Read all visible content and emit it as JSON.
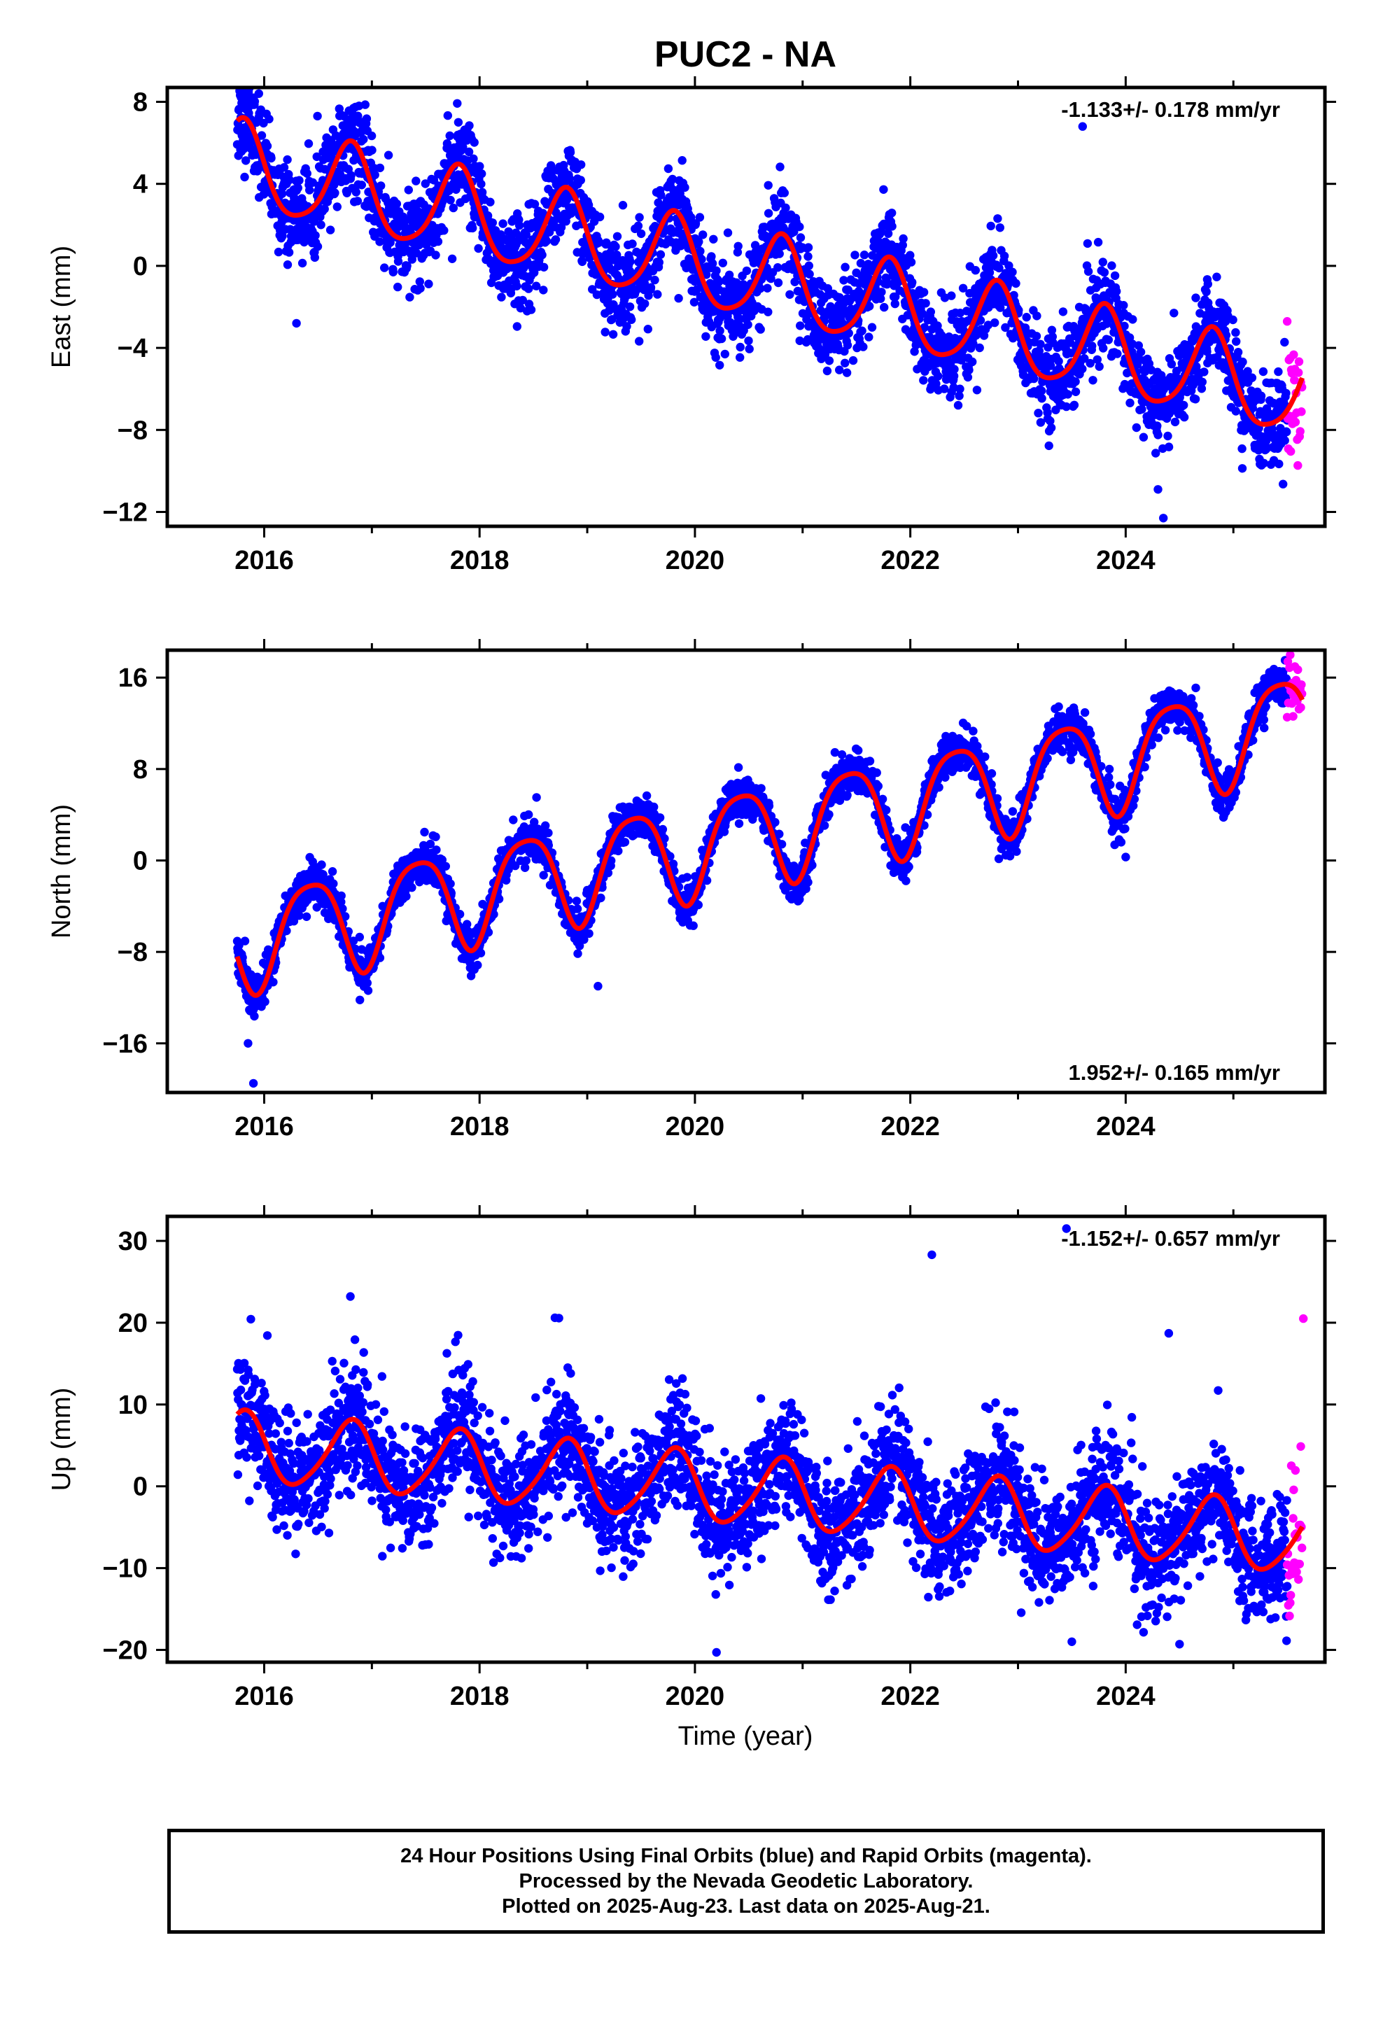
{
  "title": "PUC2 - NA",
  "xlabel": "Time (year)",
  "caption": [
    "24 Hour Positions Using Final Orbits (blue) and Rapid Orbits (magenta).",
    "Processed by the Nevada Geodetic Laboratory.",
    "Plotted on 2025-Aug-23. Last data on 2025-Aug-21."
  ],
  "colors": {
    "final": "#0000ff",
    "rapid": "#ff00ff",
    "model": "#ff0000",
    "axis": "#000000"
  },
  "chart_data": [
    {
      "type": "scatter",
      "ylabel": "East (mm)",
      "rate_label": "-1.133+/- 0.178 mm/yr",
      "rate_position": "top-right",
      "xlim": [
        2015.1,
        2025.85
      ],
      "ylim": [
        -12.7,
        8.7
      ],
      "xticks": [
        2016,
        2018,
        2020,
        2022,
        2024
      ],
      "xtick_labels": [
        "2016",
        "2018",
        "2020",
        "2022",
        "2024"
      ],
      "yticks": [
        -12,
        -8,
        -4,
        0,
        4,
        8
      ],
      "ytick_labels": [
        "−12",
        "−8",
        "−4",
        "0",
        "4",
        "8"
      ],
      "grid": false,
      "data_start": 2015.75,
      "final_end": 2025.5,
      "data_end": 2025.64,
      "series": [
        {
          "name": "Final Orbits (blue)",
          "kind": "points"
        },
        {
          "name": "Rapid Orbits (magenta)",
          "kind": "points"
        },
        {
          "kind": "fit-line"
        }
      ],
      "fit": {
        "offset": 4.86,
        "rate": -1.133,
        "ref_year": 2015.75,
        "annual_amp": 2.1,
        "annual_phase": 0.55,
        "semiannual_amp": 0.35,
        "semiannual_phase": 0.2
      },
      "scatter_sd": 1.1,
      "outliers": [
        [
          2023.6,
          6.8
        ],
        [
          2016.3,
          -2.8
        ],
        [
          2024.35,
          -12.3
        ],
        [
          2015.95,
          8.4
        ],
        [
          2024.3,
          -10.9
        ]
      ]
    },
    {
      "type": "scatter",
      "ylabel": "North (mm)",
      "rate_label": "1.952+/- 0.165 mm/yr",
      "rate_position": "bottom-right",
      "xlim": [
        2015.1,
        2025.85
      ],
      "ylim": [
        -20.3,
        18.4
      ],
      "xticks": [
        2016,
        2018,
        2020,
        2022,
        2024
      ],
      "xtick_labels": [
        "2016",
        "2018",
        "2020",
        "2022",
        "2024"
      ],
      "yticks": [
        -16,
        -8,
        0,
        8,
        16
      ],
      "ytick_labels": [
        "−16",
        "−8",
        "0",
        "8",
        "16"
      ],
      "grid": false,
      "data_start": 2015.75,
      "final_end": 2025.5,
      "data_end": 2025.64,
      "series": [
        {
          "name": "Final Orbits (blue)",
          "kind": "points"
        },
        {
          "name": "Rapid Orbits (magenta)",
          "kind": "points"
        },
        {
          "kind": "fit-line"
        }
      ],
      "fit": {
        "offset": -7.05,
        "rate": 1.952,
        "ref_year": 2015.75,
        "annual_amp": 4.3,
        "annual_phase": 0.18,
        "semiannual_amp": 0.8,
        "semiannual_phase": 0.05
      },
      "scatter_sd": 0.9,
      "outliers": [
        [
          2015.9,
          -19.5
        ],
        [
          2019.1,
          -11.0
        ],
        [
          2024.0,
          0.3
        ],
        [
          2015.85,
          -16.0
        ]
      ]
    },
    {
      "type": "scatter",
      "ylabel": "Up (mm)",
      "rate_label": "-1.152+/- 0.657 mm/yr",
      "rate_position": "top-right",
      "xlim": [
        2015.1,
        2025.85
      ],
      "ylim": [
        -21.5,
        33.0
      ],
      "xticks": [
        2016,
        2018,
        2020,
        2022,
        2024
      ],
      "xtick_labels": [
        "2016",
        "2018",
        "2020",
        "2022",
        "2024"
      ],
      "yticks": [
        -20,
        -10,
        0,
        10,
        20,
        30
      ],
      "ytick_labels": [
        "−20",
        "−10",
        "0",
        "10",
        "20",
        "30"
      ],
      "grid": false,
      "data_start": 2015.75,
      "final_end": 2025.5,
      "data_end": 2025.64,
      "series": [
        {
          "name": "Final Orbits (blue)",
          "kind": "points"
        },
        {
          "name": "Rapid Orbits (magenta)",
          "kind": "points"
        },
        {
          "kind": "fit-line"
        }
      ],
      "fit": {
        "offset": 4.8,
        "rate": -1.152,
        "ref_year": 2015.75,
        "annual_amp": 4.2,
        "annual_phase": 0.55,
        "semiannual_amp": 0.6,
        "semiannual_phase": 0.25
      },
      "scatter_sd": 3.6,
      "outliers": [
        [
          2023.45,
          31.5
        ],
        [
          2022.2,
          28.3
        ],
        [
          2016.8,
          23.2
        ],
        [
          2020.2,
          -20.3
        ],
        [
          2018.7,
          20.6
        ],
        [
          2025.65,
          20.5
        ],
        [
          2023.5,
          -19.0
        ],
        [
          2024.5,
          -19.3
        ],
        [
          2024.4,
          18.7
        ]
      ]
    }
  ]
}
